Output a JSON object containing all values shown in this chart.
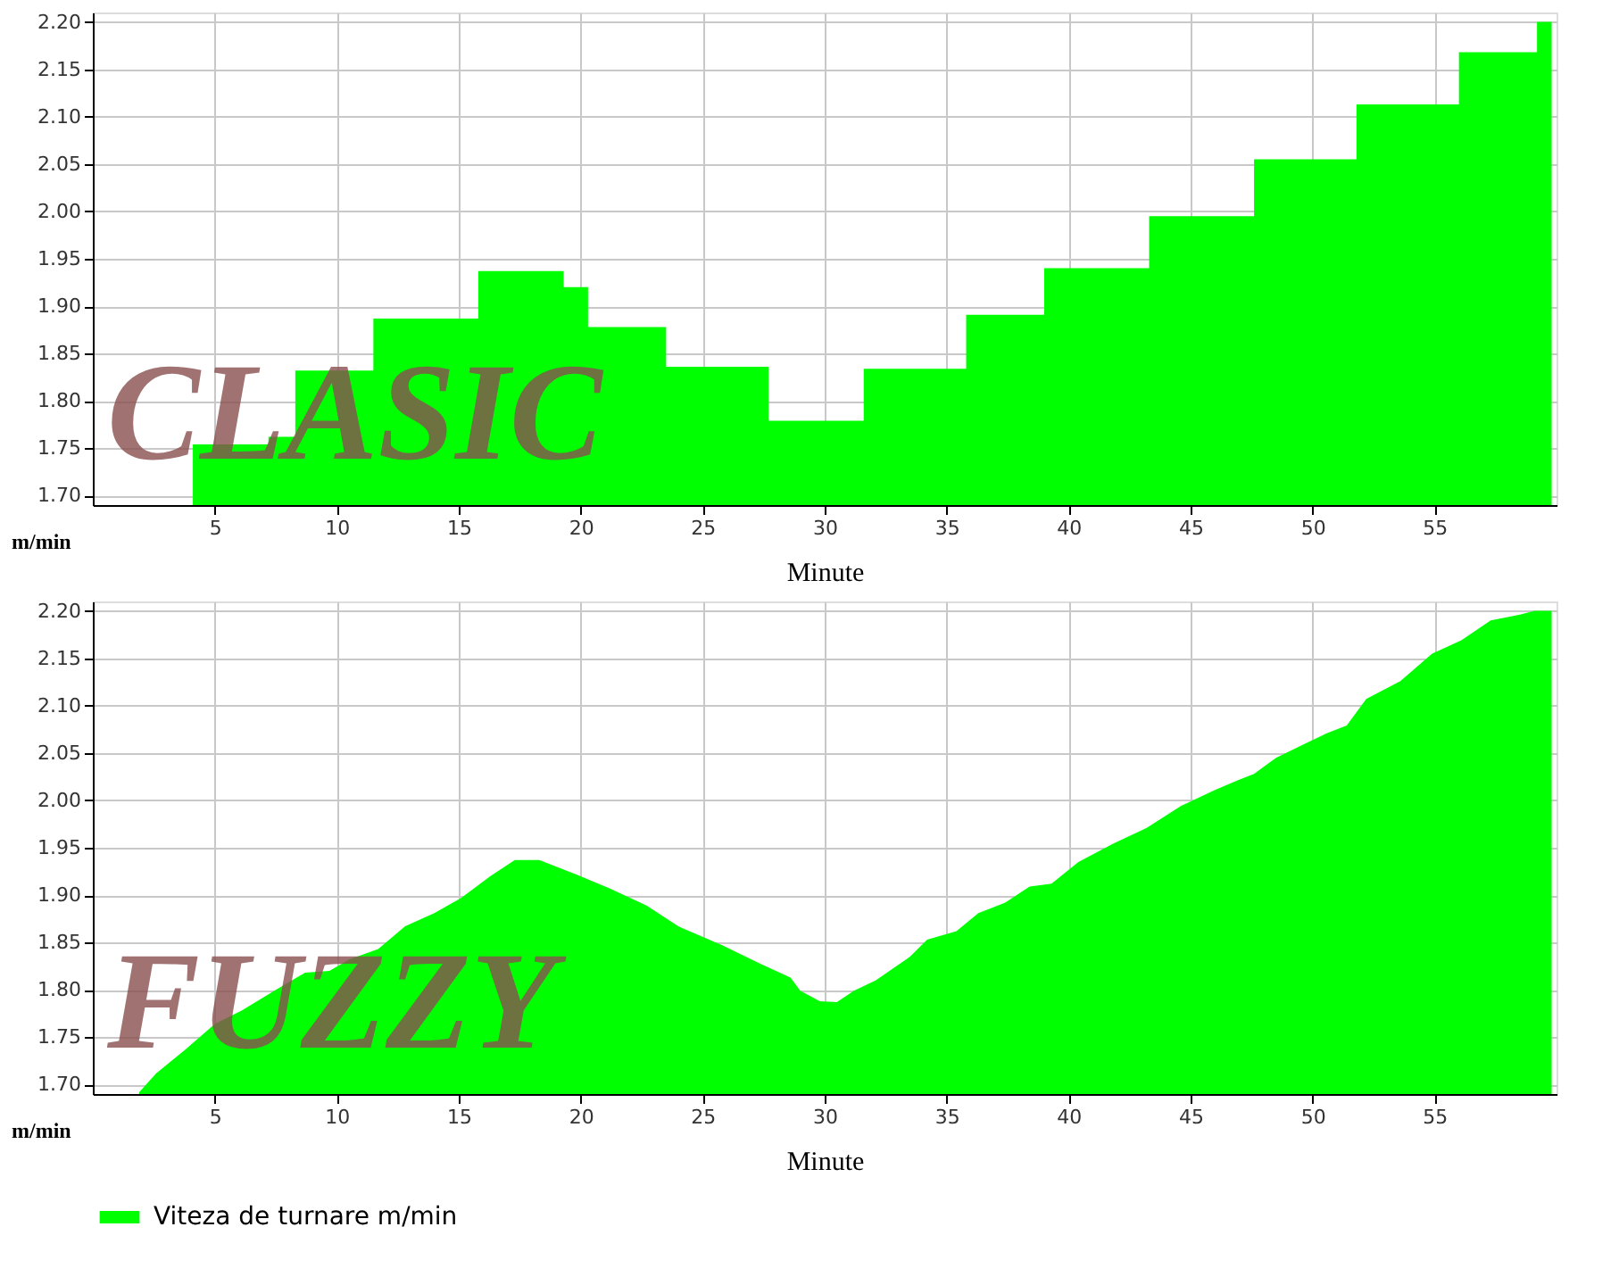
{
  "chart_data": [
    {
      "type": "area",
      "xlabel": "Minute",
      "ylabel": "m/min",
      "annotations": [
        "CLASIC"
      ],
      "xlim": [
        0,
        60
      ],
      "xticks": [
        5,
        10,
        15,
        20,
        25,
        30,
        35,
        40,
        45,
        50,
        55
      ],
      "ylim": [
        1.69,
        2.21
      ],
      "yticks": [
        {
          "value": 1.7,
          "label": "1.70"
        },
        {
          "value": 1.75,
          "label": "1.75"
        },
        {
          "value": 1.8,
          "label": "1.80"
        },
        {
          "value": 1.85,
          "label": "1.85"
        },
        {
          "value": 1.9,
          "label": "1.90"
        },
        {
          "value": 1.95,
          "label": "1.95"
        },
        {
          "value": 2.0,
          "label": "2.00"
        },
        {
          "value": 2.05,
          "label": "2.05"
        },
        {
          "value": 2.1,
          "label": "2.10"
        },
        {
          "value": 2.15,
          "label": "2.15"
        },
        {
          "value": 2.2,
          "label": "2.20"
        }
      ],
      "grid": true,
      "series": [
        {
          "color": "#00ff00",
          "x": [
            4.1,
            7.2,
            7.2,
            8.3,
            8.3,
            11.5,
            11.5,
            15.8,
            15.8,
            19.3,
            19.3,
            20.3,
            20.3,
            23.5,
            23.5,
            27.7,
            27.7,
            31.6,
            31.6,
            35.8,
            35.8,
            39.0,
            39.0,
            43.3,
            43.3,
            47.6,
            47.6,
            51.8,
            51.8,
            56.0,
            56.0,
            59.2,
            59.2,
            59.8
          ],
          "values": [
            1.754,
            1.754,
            1.762,
            1.762,
            1.832,
            1.832,
            1.887,
            1.887,
            1.937,
            1.937,
            1.92,
            1.92,
            1.878,
            1.878,
            1.836,
            1.836,
            1.779,
            1.779,
            1.834,
            1.834,
            1.891,
            1.891,
            1.94,
            1.94,
            1.995,
            1.995,
            2.055,
            2.055,
            2.113,
            2.113,
            2.168,
            2.168,
            2.2,
            2.2
          ]
        }
      ]
    },
    {
      "type": "area",
      "xlabel": "Minute",
      "ylabel": "m/min",
      "annotations": [
        "FUZZY"
      ],
      "xlim": [
        0,
        60
      ],
      "xticks": [
        5,
        10,
        15,
        20,
        25,
        30,
        35,
        40,
        45,
        50,
        55
      ],
      "ylim": [
        1.69,
        2.21
      ],
      "yticks": [
        {
          "value": 1.7,
          "label": "1.70"
        },
        {
          "value": 1.75,
          "label": "1.75"
        },
        {
          "value": 1.8,
          "label": "1.80"
        },
        {
          "value": 1.85,
          "label": "1.85"
        },
        {
          "value": 1.9,
          "label": "1.90"
        },
        {
          "value": 1.95,
          "label": "1.95"
        },
        {
          "value": 2.0,
          "label": "2.00"
        },
        {
          "value": 2.05,
          "label": "2.05"
        },
        {
          "value": 2.1,
          "label": "2.10"
        },
        {
          "value": 2.15,
          "label": "2.15"
        },
        {
          "value": 2.2,
          "label": "2.20"
        }
      ],
      "grid": true,
      "legend": "bottom",
      "series": [
        {
          "name": "Viteza de turnare m/min",
          "color": "#00ff00",
          "x": [
            1.9,
            2.6,
            3.8,
            5.0,
            6.1,
            7.5,
            8.7,
            9.7,
            10.5,
            11.7,
            12.8,
            14.0,
            15.1,
            16.3,
            17.3,
            18.3,
            19.8,
            21.2,
            22.7,
            24.0,
            25.8,
            27.4,
            28.6,
            29.0,
            29.8,
            30.5,
            31.2,
            32.1,
            33.5,
            34.2,
            35.4,
            36.3,
            37.4,
            38.4,
            39.3,
            40.4,
            41.8,
            43.2,
            44.6,
            46.0,
            46.9,
            47.6,
            48.5,
            49.7,
            50.6,
            51.4,
            52.2,
            53.6,
            54.9,
            56.1,
            57.3,
            58.5,
            59.1,
            59.8
          ],
          "values": [
            1.692,
            1.712,
            1.737,
            1.764,
            1.778,
            1.8,
            1.818,
            1.82,
            1.832,
            1.843,
            1.867,
            1.881,
            1.897,
            1.92,
            1.937,
            1.937,
            1.922,
            1.907,
            1.889,
            1.867,
            1.847,
            1.827,
            1.813,
            1.799,
            1.788,
            1.787,
            1.799,
            1.81,
            1.835,
            1.853,
            1.862,
            1.881,
            1.892,
            1.909,
            1.912,
            1.935,
            1.954,
            1.971,
            1.994,
            2.011,
            2.021,
            2.028,
            2.045,
            2.06,
            2.071,
            2.079,
            2.107,
            2.126,
            2.155,
            2.169,
            2.19,
            2.196,
            2.2,
            2.2
          ]
        }
      ]
    }
  ]
}
